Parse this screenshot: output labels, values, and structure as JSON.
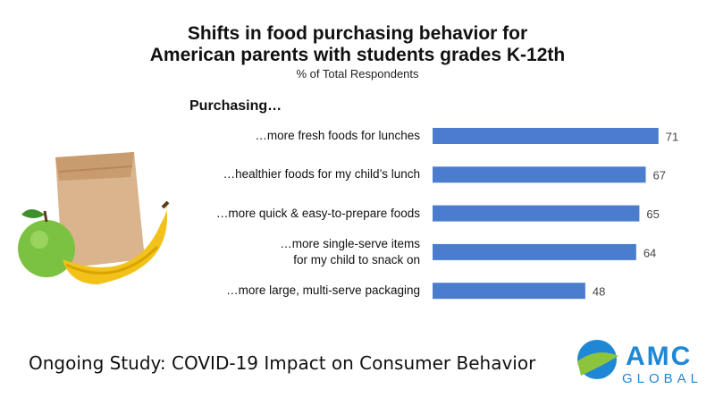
{
  "chart_data": {
    "type": "bar",
    "orientation": "horizontal",
    "title": "Shifts in food purchasing behavior for\nAmerican parents with students grades K-12th",
    "subtitle": "% of Total Respondents",
    "category_header": "Purchasing…",
    "categories": [
      "…more fresh foods for lunches",
      "…healthier foods for my child’s lunch",
      "…more quick & easy-to-prepare foods",
      "…more single-serve items\nfor my child to snack on",
      "…more large, multi-serve packaging"
    ],
    "values": [
      71,
      67,
      65,
      64,
      48
    ],
    "color": "#4a7dce"
  },
  "footer": "Ongoing Study: COVID-19 Impact on Consumer Behavior",
  "logo": {
    "name": "AMC",
    "tagline": "GLOBAL"
  }
}
